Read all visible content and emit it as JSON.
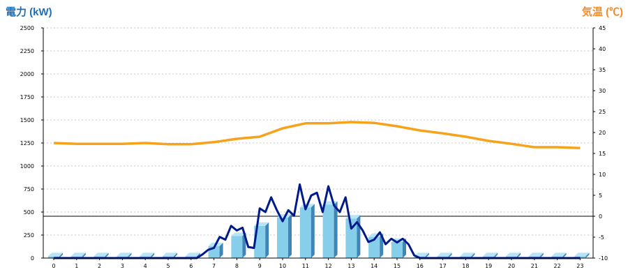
{
  "chart_data": {
    "type": "bar+line",
    "left_axis_title": "電力 (kW)",
    "right_axis_title": "気温 (℃)",
    "left_title_color": "#1f6fb5",
    "right_title_color": "#f28c28",
    "ylim_left": [
      0,
      2500
    ],
    "left_ticks": [
      0,
      250,
      500,
      750,
      1000,
      1250,
      1500,
      1750,
      2000,
      2250,
      2500
    ],
    "ylim_right": [
      -10,
      45
    ],
    "right_ticks": [
      -10,
      -5,
      0,
      5,
      10,
      15,
      20,
      25,
      30,
      35,
      40,
      45
    ],
    "categories": [
      "0",
      "1",
      "2",
      "3",
      "4",
      "5",
      "6",
      "7",
      "8",
      "9",
      "10",
      "11",
      "12",
      "13",
      "14",
      "15",
      "16",
      "17",
      "18",
      "19",
      "20",
      "21",
      "22",
      "23"
    ],
    "bar_series": {
      "color": "#87ceeb",
      "values": [
        20,
        20,
        20,
        20,
        20,
        20,
        20,
        130,
        240,
        350,
        440,
        550,
        580,
        430,
        230,
        175,
        20,
        20,
        20,
        20,
        20,
        20,
        20,
        20
      ]
    },
    "power_line": {
      "color": "#001a8c",
      "x": [
        0,
        0.5,
        1,
        1.5,
        2,
        2.5,
        3,
        3.5,
        4,
        4.5,
        5,
        5.5,
        6,
        6.25,
        6.5,
        6.75,
        7,
        7.25,
        7.5,
        7.75,
        8,
        8.25,
        8.5,
        8.75,
        9,
        9.25,
        9.5,
        9.75,
        10,
        10.25,
        10.5,
        10.75,
        11,
        11.25,
        11.5,
        11.75,
        12,
        12.25,
        12.5,
        12.75,
        13,
        13.25,
        13.5,
        13.75,
        14,
        14.25,
        14.5,
        14.75,
        15,
        15.25,
        15.5,
        15.75,
        16,
        16.5,
        17,
        17.5,
        18,
        18.5,
        19,
        19.5,
        20,
        20.5,
        21,
        21.5,
        22,
        22.5,
        23
      ],
      "values": [
        0,
        0,
        0,
        0,
        0,
        0,
        0,
        0,
        0,
        0,
        0,
        0,
        0,
        0,
        40,
        90,
        110,
        230,
        200,
        350,
        300,
        330,
        120,
        110,
        540,
        500,
        660,
        520,
        400,
        520,
        460,
        800,
        530,
        680,
        710,
        500,
        780,
        570,
        500,
        660,
        320,
        390,
        300,
        175,
        200,
        280,
        150,
        210,
        170,
        210,
        150,
        30,
        0,
        0,
        0,
        0,
        0,
        0,
        0,
        0,
        0,
        0,
        0,
        0,
        0,
        0,
        0
      ]
    },
    "temperature_line": {
      "color": "#f7a21b",
      "x": [
        0,
        1,
        2,
        3,
        4,
        5,
        6,
        7,
        8,
        9,
        10,
        11,
        12,
        13,
        14,
        15,
        16,
        17,
        18,
        19,
        20,
        21,
        22,
        23
      ],
      "values": [
        17.5,
        17.3,
        17.3,
        17.3,
        17.5,
        17.2,
        17.2,
        17.7,
        18.5,
        19,
        21,
        22.2,
        22.2,
        22.5,
        22.3,
        21.5,
        20.5,
        19.8,
        19,
        18,
        17.3,
        16.5,
        16.5,
        16.3
      ]
    },
    "zero_temperature_reference": 0,
    "grid": "horizontal-dashed",
    "legend": "none"
  }
}
